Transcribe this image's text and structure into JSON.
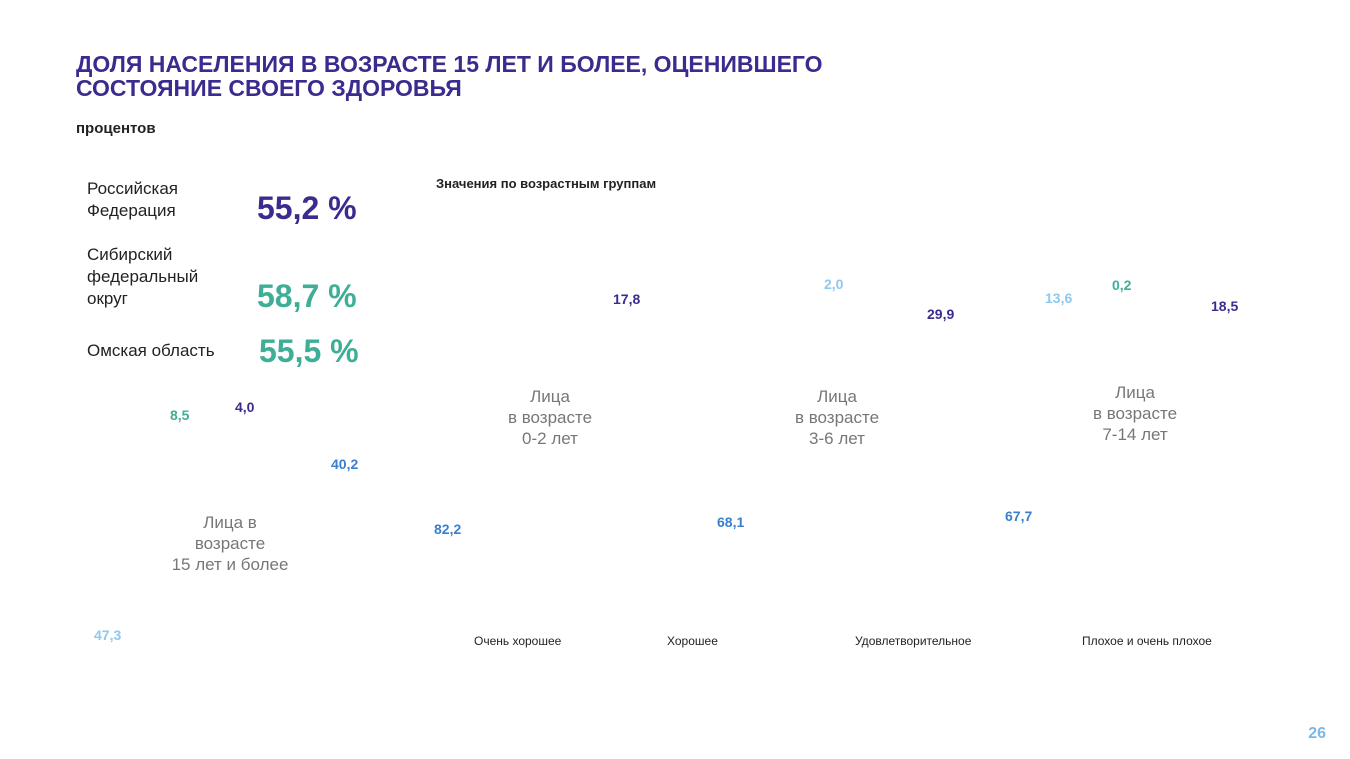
{
  "colors": {
    "title": "#3a2c8f",
    "very_good": "#8ec8f0",
    "good": "#3a7fcf",
    "satisfactory": "#3a2c8f",
    "bad": "#3fae96",
    "siberia": "#3fae96",
    "caption": "#777777",
    "page_number": "#7ab8e8"
  },
  "title_lines": [
    "ДОЛЯ НАСЕЛЕНИЯ В ВОЗРАСТЕ 15 ЛЕТ И БОЛЕЕ, ОЦЕНИВШЕГО",
    "СОСТОЯНИЕ СВОЕГО ЗДОРОВЬЯ"
  ],
  "subtitle": "процентов",
  "summary": [
    {
      "label": [
        "Российская",
        "Федерация"
      ],
      "value": "55,2 %",
      "color": "#3a2c8f"
    },
    {
      "label": [
        "Сибирский",
        "федеральный",
        "округ"
      ],
      "value": "58,7 %",
      "color": "#3fae96"
    },
    {
      "label": [
        "Омская область"
      ],
      "value": "55,5 %",
      "color": "#3fae96"
    }
  ],
  "section_title": "Значения по возрастным группам",
  "chart_data": {
    "type": "pie",
    "note": "Donut charts by age group; slice graphics not visible, only data labels",
    "categories": [
      "Очень хорошее",
      "Хорошее",
      "Удовлетворительное",
      "Плохое и очень плохое"
    ],
    "groups": [
      {
        "caption": [
          "Лица в",
          "возрасте",
          "15 лет и более"
        ],
        "labels": [
          {
            "text": "47,3",
            "color": "#8ec8f0"
          },
          {
            "text": "40,2",
            "color": "#3a7fcf"
          },
          {
            "text": "4,0",
            "color": "#3a2c8f"
          },
          {
            "text": "8,5",
            "color": "#3fae96"
          }
        ]
      },
      {
        "caption": [
          "Лица",
          "в возрасте",
          "0-2 лет"
        ],
        "labels": [
          {
            "text": "82,2",
            "color": "#3a7fcf"
          },
          {
            "text": "17,8",
            "color": "#3a2c8f"
          }
        ]
      },
      {
        "caption": [
          "Лица",
          "в возрасте",
          "3-6 лет"
        ],
        "labels": [
          {
            "text": "68,1",
            "color": "#3a7fcf"
          },
          {
            "text": "29,9",
            "color": "#3a2c8f"
          },
          {
            "text": "2,0",
            "color": "#8ec8f0"
          }
        ]
      },
      {
        "caption": [
          "Лица",
          "в возрасте",
          "7-14 лет"
        ],
        "labels": [
          {
            "text": "67,7",
            "color": "#3a7fcf"
          },
          {
            "text": "18,5",
            "color": "#3a2c8f"
          },
          {
            "text": "13,6",
            "color": "#8ec8f0"
          },
          {
            "text": "0,2",
            "color": "#3fae96"
          }
        ]
      }
    ]
  },
  "page_number": "26"
}
